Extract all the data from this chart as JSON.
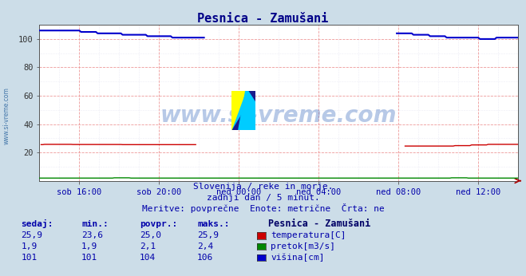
{
  "title": "Pesnica - Zamušani",
  "bg_color": "#ccdde8",
  "plot_bg_color": "#ffffff",
  "grid_color": "#ee9999",
  "minor_grid_color": "#ddddee",
  "xlabel_ticks": [
    "sob 16:00",
    "sob 20:00",
    "ned 00:00",
    "ned 04:00",
    "ned 08:00",
    "ned 12:00"
  ],
  "n": 289,
  "ylim": [
    0,
    110
  ],
  "yticks": [
    20,
    40,
    60,
    80,
    100
  ],
  "temp_color": "#cc0000",
  "flow_color": "#008800",
  "height_color": "#0000cc",
  "subtitle1": "Slovenija / reke in morje.",
  "subtitle2": "zadnji dan / 5 minut.",
  "subtitle3": "Meritve: povprečne  Enote: metrične  Črta: ne",
  "legend_title": "Pesnica - Zamušani",
  "col_headers": [
    "sedaj:",
    "min.:",
    "povpr.:",
    "maks.:"
  ],
  "temp_stats": [
    "25,9",
    "23,6",
    "25,0",
    "25,9"
  ],
  "flow_stats": [
    "1,9",
    "1,9",
    "2,1",
    "2,4"
  ],
  "height_stats": [
    "101",
    "101",
    "104",
    "106"
  ],
  "temp_label": "temperatura[C]",
  "flow_label": "pretok[m3/s]",
  "height_label": "višina[cm]",
  "tick_indices": [
    24,
    72,
    120,
    168,
    216,
    264
  ]
}
